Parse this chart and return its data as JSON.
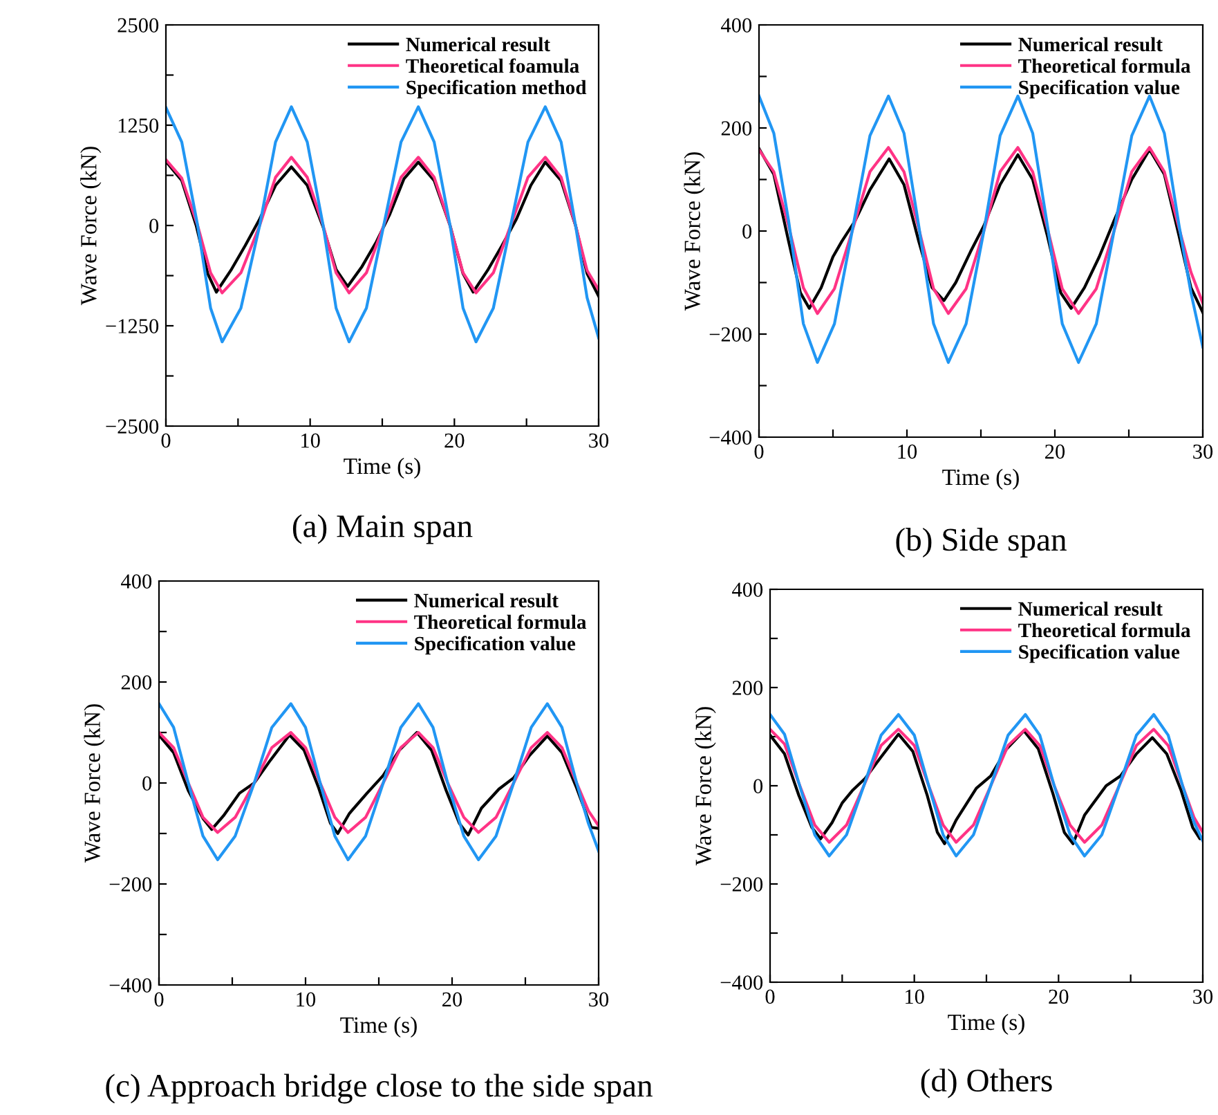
{
  "chart_data": [
    {
      "type": "line",
      "title": "(a) Main span",
      "xlabel": "Time (s)",
      "ylabel": "Wave Force (kN)",
      "xlim": [
        0,
        30
      ],
      "ylim": [
        -2500,
        2500
      ],
      "xticks": [
        0,
        {
          "value": 5,
          "label": null
        },
        10,
        {
          "value": 15,
          "label": null
        },
        20,
        {
          "value": 25,
          "label": null
        },
        30
      ],
      "yticks": [
        -2500,
        {
          "value": -1875,
          "label": null
        },
        -1250,
        {
          "value": -625,
          "label": null
        },
        0,
        {
          "value": 625,
          "label": null
        },
        1250,
        {
          "value": 1875,
          "label": null
        },
        2500
      ],
      "legend": "top right",
      "grid": false,
      "line_style": "solid",
      "marker": "none",
      "series": [
        {
          "name": "Numerical result",
          "color": "#000000",
          "x": [
            0,
            1.1,
            2.1,
            2.9,
            3.5,
            4.5,
            5.5,
            6.5,
            7.6,
            8.7,
            9.8,
            10.9,
            11.8,
            12.6,
            13.6,
            14.6,
            15.5,
            16.5,
            17.5,
            18.6,
            19.7,
            20.6,
            21.3,
            22.3,
            23.3,
            24.3,
            25.3,
            26.3,
            27.4,
            28.4,
            29.2,
            30
          ],
          "values": [
            800,
            560,
            0,
            -600,
            -830,
            -560,
            -250,
            80,
            500,
            730,
            500,
            -20,
            -550,
            -760,
            -510,
            -200,
            130,
            580,
            790,
            560,
            0,
            -600,
            -830,
            -560,
            -250,
            80,
            500,
            790,
            560,
            0,
            -600,
            -880
          ]
        },
        {
          "name": "Theoretical foamula",
          "color": "#ff3385",
          "x": [
            0,
            1.1,
            2.2,
            3.1,
            3.9,
            5.2,
            6.5,
            7.6,
            8.7,
            9.8,
            10.9,
            11.8,
            12.7,
            13.9,
            15.1,
            16.3,
            17.5,
            18.6,
            19.7,
            20.6,
            21.5,
            22.7,
            23.9,
            25.1,
            26.3,
            27.4,
            28.4,
            29.2,
            30
          ],
          "values": [
            820,
            590,
            0,
            -590,
            -840,
            -590,
            0,
            600,
            850,
            600,
            0,
            -590,
            -840,
            -590,
            0,
            600,
            850,
            600,
            0,
            -590,
            -840,
            -590,
            0,
            600,
            850,
            600,
            0,
            -560,
            -800
          ]
        },
        {
          "name": "Specification method",
          "color": "#2196f3",
          "x": [
            0,
            1.1,
            2.2,
            3.1,
            3.9,
            5.2,
            6.5,
            7.6,
            8.7,
            9.8,
            10.9,
            11.8,
            12.7,
            13.9,
            15.1,
            16.3,
            17.5,
            18.6,
            19.7,
            20.6,
            21.5,
            22.7,
            23.9,
            25.1,
            26.3,
            27.4,
            28.4,
            29.2,
            30
          ],
          "values": [
            1470,
            1040,
            0,
            -1030,
            -1450,
            -1030,
            0,
            1040,
            1480,
            1040,
            0,
            -1030,
            -1450,
            -1030,
            0,
            1040,
            1480,
            1040,
            0,
            -1030,
            -1450,
            -1030,
            0,
            1040,
            1480,
            1040,
            0,
            -900,
            -1400
          ]
        }
      ]
    },
    {
      "type": "line",
      "title": "(b) Side span",
      "xlabel": "Time (s)",
      "ylabel": "Wave Force (kN)",
      "xlim": [
        0,
        30
      ],
      "ylim": [
        -400,
        400
      ],
      "xticks": [
        0,
        {
          "value": 5,
          "label": null
        },
        10,
        {
          "value": 15,
          "label": null
        },
        20,
        {
          "value": 25,
          "label": null
        },
        30
      ],
      "yticks": [
        -400,
        {
          "value": -300,
          "label": null
        },
        -200,
        {
          "value": -100,
          "label": null
        },
        0,
        {
          "value": 100,
          "label": null
        },
        200,
        {
          "value": 300,
          "label": null
        },
        400
      ],
      "legend": "top right",
      "grid": false,
      "line_style": "solid",
      "marker": "none",
      "series": [
        {
          "name": "Numerical result",
          "color": "#000000",
          "x": [
            0,
            1.0,
            2.0,
            2.8,
            3.4,
            4.2,
            5.0,
            5.6,
            6.5,
            7.5,
            8.8,
            9.8,
            10.8,
            11.7,
            12.5,
            13.3,
            14.3,
            15.2,
            16.3,
            17.5,
            18.5,
            19.5,
            20.4,
            21.1,
            22.0,
            23.0,
            24.0,
            25.2,
            26.4,
            27.4,
            28.4,
            29.2,
            30
          ],
          "values": [
            160,
            110,
            -20,
            -120,
            -150,
            -110,
            -50,
            -20,
            20,
            80,
            140,
            90,
            -20,
            -110,
            -135,
            -100,
            -40,
            10,
            90,
            148,
            100,
            -10,
            -120,
            -150,
            -110,
            -50,
            20,
            100,
            158,
            110,
            -10,
            -110,
            -158
          ]
        },
        {
          "name": "Theoretical formula",
          "color": "#ff3385",
          "x": [
            0,
            1.0,
            2.0,
            3.0,
            3.95,
            5.1,
            6.3,
            7.5,
            8.75,
            9.8,
            10.8,
            11.8,
            12.8,
            14.0,
            15.2,
            16.3,
            17.5,
            18.5,
            19.5,
            20.5,
            21.6,
            22.8,
            24.0,
            25.2,
            26.4,
            27.4,
            28.4,
            29.2,
            30
          ],
          "values": [
            158,
            115,
            10,
            -110,
            -160,
            -112,
            0,
            115,
            162,
            115,
            5,
            -112,
            -160,
            -112,
            0,
            115,
            162,
            115,
            5,
            -112,
            -160,
            -112,
            0,
            115,
            162,
            115,
            5,
            -80,
            -140
          ]
        },
        {
          "name": "Specification value",
          "color": "#2196f3",
          "x": [
            0,
            1.0,
            2.0,
            3.0,
            3.95,
            5.1,
            6.3,
            7.5,
            8.75,
            9.8,
            10.8,
            11.8,
            12.8,
            14.0,
            15.2,
            16.3,
            17.5,
            18.5,
            19.5,
            20.5,
            21.6,
            22.8,
            24.0,
            25.2,
            26.4,
            27.4,
            28.4,
            29.2,
            30
          ],
          "values": [
            262,
            190,
            20,
            -180,
            -255,
            -180,
            0,
            185,
            262,
            190,
            10,
            -180,
            -255,
            -180,
            0,
            185,
            262,
            190,
            10,
            -180,
            -255,
            -180,
            0,
            185,
            262,
            190,
            10,
            -120,
            -225
          ]
        }
      ]
    },
    {
      "type": "line",
      "title": "(c) Approach bridge close to the side span",
      "xlabel": "Time (s)",
      "ylabel": "Wave Force (kN)",
      "xlim": [
        0,
        30
      ],
      "ylim": [
        -400,
        400
      ],
      "xticks": [
        0,
        {
          "value": 5,
          "label": null
        },
        10,
        {
          "value": 15,
          "label": null
        },
        20,
        {
          "value": 25,
          "label": null
        },
        30
      ],
      "yticks": [
        -400,
        {
          "value": -300,
          "label": null
        },
        -200,
        {
          "value": -100,
          "label": null
        },
        0,
        {
          "value": 100,
          "label": null
        },
        200,
        {
          "value": 300,
          "label": null
        },
        400
      ],
      "legend": "top right",
      "grid": false,
      "line_style": "solid",
      "marker": "none",
      "series": [
        {
          "name": "Numerical result",
          "color": "#000000",
          "x": [
            0,
            1.0,
            2.0,
            3.0,
            3.6,
            4.4,
            5.5,
            6.5,
            7.6,
            8.9,
            9.9,
            10.9,
            11.7,
            12.2,
            13.0,
            14.2,
            15.3,
            16.4,
            17.6,
            18.6,
            19.6,
            20.5,
            21.1,
            22.0,
            23.2,
            24.2,
            25.3,
            26.5,
            27.5,
            28.5,
            29.5,
            30
          ],
          "values": [
            95,
            60,
            -15,
            -70,
            -92,
            -65,
            -20,
            0,
            45,
            95,
            65,
            -10,
            -80,
            -100,
            -60,
            -20,
            15,
            65,
            100,
            65,
            -15,
            -80,
            -103,
            -50,
            -12,
            10,
            55,
            93,
            60,
            -10,
            -88,
            -90
          ]
        },
        {
          "name": "Theoretical formula",
          "color": "#ff3385",
          "x": [
            0,
            1.0,
            2.0,
            3.0,
            4.0,
            5.2,
            6.5,
            7.7,
            9.0,
            10.0,
            11.0,
            12.0,
            12.9,
            14.1,
            15.3,
            16.5,
            17.7,
            18.7,
            19.7,
            20.8,
            21.8,
            23.0,
            24.2,
            25.4,
            26.5,
            27.5,
            28.5,
            29.3,
            30
          ],
          "values": [
            100,
            70,
            0,
            -68,
            -98,
            -68,
            0,
            70,
            100,
            70,
            0,
            -68,
            -98,
            -68,
            0,
            70,
            100,
            70,
            0,
            -68,
            -98,
            -68,
            0,
            70,
            100,
            70,
            0,
            -55,
            -85
          ]
        },
        {
          "name": "Specification value",
          "color": "#2196f3",
          "x": [
            0,
            1.0,
            2.0,
            3.0,
            4.0,
            5.2,
            6.5,
            7.7,
            9.0,
            10.0,
            11.0,
            12.0,
            12.9,
            14.1,
            15.3,
            16.5,
            17.7,
            18.7,
            19.7,
            20.8,
            21.8,
            23.0,
            24.2,
            25.4,
            26.5,
            27.5,
            28.5,
            29.3,
            30
          ],
          "values": [
            157,
            110,
            0,
            -105,
            -152,
            -105,
            0,
            110,
            157,
            110,
            0,
            -105,
            -152,
            -105,
            0,
            110,
            157,
            110,
            0,
            -105,
            -152,
            -105,
            0,
            110,
            157,
            110,
            0,
            -80,
            -135
          ]
        }
      ]
    },
    {
      "type": "line",
      "title": "(d) Others",
      "xlabel": "Time (s)",
      "ylabel": "Wave Force (kN)",
      "xlim": [
        0,
        30
      ],
      "ylim": [
        -400,
        400
      ],
      "xticks": [
        0,
        {
          "value": 5,
          "label": null
        },
        10,
        {
          "value": 15,
          "label": null
        },
        20,
        {
          "value": 25,
          "label": null
        },
        30
      ],
      "yticks": [
        -400,
        {
          "value": -300,
          "label": null
        },
        -200,
        {
          "value": -100,
          "label": null
        },
        0,
        {
          "value": 100,
          "label": null
        },
        200,
        {
          "value": 300,
          "label": null
        },
        400
      ],
      "legend": "top right",
      "grid": false,
      "line_style": "solid",
      "marker": "none",
      "series": [
        {
          "name": "Numerical result",
          "color": "#000000",
          "x": [
            0,
            1.0,
            2.0,
            2.9,
            3.5,
            4.3,
            5.0,
            5.7,
            6.6,
            7.6,
            8.9,
            9.9,
            10.9,
            11.6,
            12.1,
            12.9,
            14.3,
            15.3,
            16.4,
            17.6,
            18.6,
            19.6,
            20.4,
            21.0,
            21.8,
            23.3,
            24.3,
            25.4,
            26.5,
            27.5,
            28.5,
            29.3,
            29.8,
            30
          ],
          "values": [
            103,
            65,
            -20,
            -85,
            -108,
            -75,
            -35,
            -10,
            15,
            55,
            105,
            70,
            -20,
            -95,
            -118,
            -70,
            -5,
            20,
            75,
            112,
            75,
            -15,
            -95,
            -118,
            -60,
            0,
            20,
            65,
            98,
            65,
            -10,
            -85,
            -108,
            -105
          ]
        },
        {
          "name": "Theoretical formula",
          "color": "#ff3385",
          "x": [
            0,
            1.0,
            2.0,
            3.1,
            4.1,
            5.3,
            6.5,
            7.7,
            8.9,
            10.0,
            11.0,
            12.0,
            12.9,
            14.1,
            15.3,
            16.5,
            17.7,
            18.7,
            19.7,
            20.8,
            21.8,
            23.0,
            24.2,
            25.4,
            26.6,
            27.6,
            28.6,
            29.4,
            30
          ],
          "values": [
            115,
            85,
            5,
            -80,
            -115,
            -80,
            0,
            82,
            115,
            82,
            0,
            -80,
            -115,
            -80,
            0,
            82,
            115,
            82,
            0,
            -80,
            -115,
            -80,
            0,
            82,
            115,
            82,
            0,
            -65,
            -95
          ]
        },
        {
          "name": "Specification value",
          "color": "#2196f3",
          "x": [
            0,
            1.0,
            2.0,
            3.1,
            4.1,
            5.3,
            6.5,
            7.7,
            8.9,
            10.0,
            11.0,
            12.0,
            12.9,
            14.1,
            15.3,
            16.5,
            17.7,
            18.7,
            19.7,
            20.8,
            21.8,
            23.0,
            24.2,
            25.4,
            26.6,
            27.6,
            28.6,
            29.4,
            30
          ],
          "values": [
            145,
            105,
            5,
            -100,
            -143,
            -100,
            0,
            103,
            145,
            103,
            0,
            -100,
            -143,
            -100,
            0,
            103,
            145,
            103,
            0,
            -100,
            -143,
            -100,
            0,
            103,
            145,
            103,
            0,
            -75,
            -112
          ]
        }
      ]
    }
  ]
}
